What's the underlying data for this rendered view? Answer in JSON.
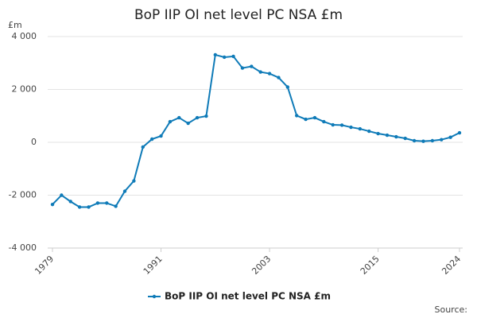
{
  "chart_data": {
    "type": "line",
    "title": "BoP IIP OI net level PC NSA £m",
    "y_label": "£m",
    "source_label": "Source:",
    "x": [
      1979,
      1980,
      1981,
      1982,
      1983,
      1984,
      1985,
      1986,
      1987,
      1988,
      1989,
      1990,
      1991,
      1992,
      1993,
      1994,
      1995,
      1996,
      1997,
      1998,
      1999,
      2000,
      2001,
      2002,
      2003,
      2004,
      2005,
      2006,
      2007,
      2008,
      2009,
      2010,
      2011,
      2012,
      2013,
      2014,
      2015,
      2016,
      2017,
      2018,
      2019,
      2020,
      2021,
      2022,
      2023,
      2024
    ],
    "series": [
      {
        "name": "BoP IIP OI net level PC NSA £m",
        "color": "#0f7bb8",
        "values": [
          -2350,
          -2000,
          -2240,
          -2450,
          -2450,
          -2300,
          -2300,
          -2420,
          -1850,
          -1460,
          -180,
          120,
          240,
          780,
          930,
          720,
          930,
          990,
          3310,
          3220,
          3250,
          2810,
          2870,
          2660,
          2600,
          2450,
          2090,
          1010,
          870,
          930,
          780,
          660,
          650,
          570,
          510,
          420,
          330,
          270,
          210,
          150,
          60,
          40,
          60,
          100,
          190,
          360
        ]
      }
    ],
    "xlim": [
      1979,
      2024
    ],
    "xticks": [
      1979,
      1991,
      2003,
      2015,
      2024
    ],
    "ylim": [
      -4000,
      4000
    ],
    "yticks": [
      {
        "value": -4000,
        "label": "-4 000"
      },
      {
        "value": -2000,
        "label": "-2 000"
      },
      0,
      {
        "value": 2000,
        "label": "2 000"
      },
      {
        "value": 4000,
        "label": "4 000"
      }
    ],
    "grid": true
  }
}
